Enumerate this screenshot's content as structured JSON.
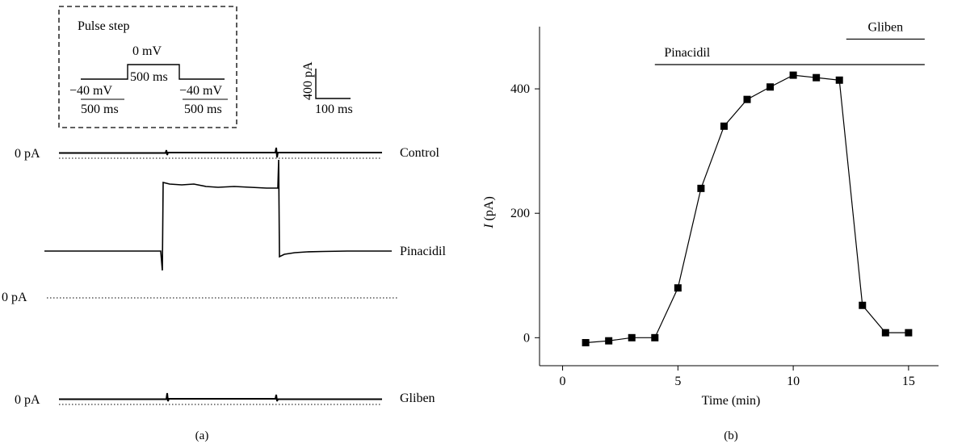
{
  "panel_a": {
    "caption": "(a)",
    "protocol": {
      "title": "Pulse step",
      "hold_voltage_left": "−40 mV",
      "hold_duration_left": "500 ms",
      "step_voltage": "0 mV",
      "step_duration": "500 ms",
      "hold_voltage_right": "−40 mV",
      "hold_duration_right": "500 ms"
    },
    "scale_bar": {
      "current": "400 pA",
      "time": "100 ms"
    },
    "traces": {
      "control_label": "Control",
      "pinacidil_label": "Pinacidil",
      "gliben_label": "Gliben"
    },
    "zero_labels": {
      "control": "0 pA",
      "pinacidil": "0 pA",
      "gliben": "0 pA"
    }
  },
  "panel_b": {
    "caption": "(b)"
  },
  "chart_data": {
    "type": "scatter",
    "xlabel": "Time (min)",
    "ylabel_italic": "I",
    "ylabel_rest": " (pA)",
    "xlim": [
      -1,
      16.3
    ],
    "ylim": [
      -45,
      500
    ],
    "xticks": [
      0,
      5,
      10,
      15
    ],
    "yticks": [
      0,
      200,
      400
    ],
    "grid": false,
    "series": [
      {
        "marker": "square",
        "connected": true,
        "x": [
          1,
          2,
          3,
          4,
          5,
          6,
          7,
          8,
          9,
          10,
          11,
          12,
          13,
          14,
          15
        ],
        "y": [
          -8,
          -5,
          0,
          0,
          80,
          240,
          340,
          383,
          403,
          422,
          418,
          414,
          52,
          8,
          8
        ]
      }
    ],
    "annotations": [
      {
        "text": "Pinacidil",
        "bar_from": 4,
        "bar_to": 15.7,
        "bar_y": 439
      },
      {
        "text": "Gliben",
        "bar_from": 12.3,
        "bar_to": 15.7,
        "bar_y": 480
      }
    ]
  }
}
